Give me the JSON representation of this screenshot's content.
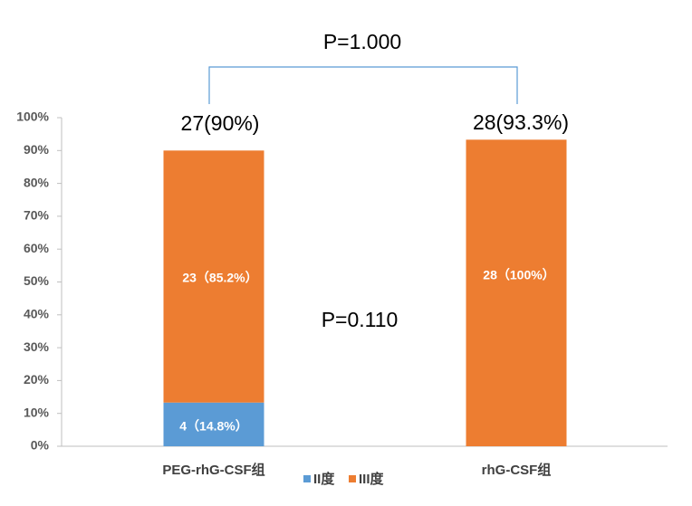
{
  "chart_data": {
    "type": "stacked_bar",
    "categories": [
      "PEG-rhG-CSF组",
      "rhG-CSF组"
    ],
    "series": [
      {
        "name": "II度",
        "color": "#5b9bd5",
        "values": [
          13.3,
          0
        ]
      },
      {
        "name": "III度",
        "color": "#ed7d31",
        "values": [
          76.7,
          93.3
        ]
      }
    ],
    "ylim": [
      0,
      100
    ],
    "yticks": [
      {
        "value": 0,
        "label": "0%"
      },
      {
        "value": 10,
        "label": "10%"
      },
      {
        "value": 20,
        "label": "20%"
      },
      {
        "value": 30,
        "label": "30%"
      },
      {
        "value": 40,
        "label": "40%"
      },
      {
        "value": 50,
        "label": "50%"
      },
      {
        "value": 60,
        "label": "60%"
      },
      {
        "value": 70,
        "label": "70%"
      },
      {
        "value": 80,
        "label": "80%"
      },
      {
        "value": 90,
        "label": "90%"
      },
      {
        "value": 100,
        "label": "100%"
      }
    ],
    "annotations": [
      "P=1.000",
      "27(90%)",
      "28(93.3%)",
      "4（14.8%）",
      "23（85.2%）",
      "28（100%）",
      "P=0.110"
    ],
    "legend": "bottom"
  }
}
